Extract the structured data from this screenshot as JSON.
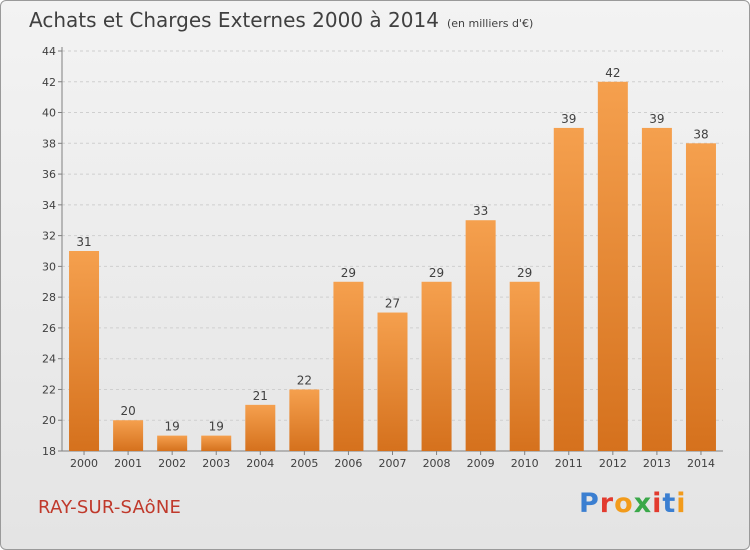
{
  "header": {
    "title": "Achats et Charges Externes 2000 à 2014",
    "subtitle": "(en milliers d'€)"
  },
  "footer": {
    "commune": "RAY-SUR-SAôNE",
    "brand": "Proxiti",
    "brand_colors": [
      "#3b7fd1",
      "#e23a2e",
      "#f29b1b",
      "#3aa849",
      "#e23a2e",
      "#3b7fd1",
      "#f29b1b"
    ]
  },
  "chart_data": {
    "type": "bar",
    "title": "Achats et Charges Externes 2000 à 2014",
    "subtitle": "(en milliers d'€)",
    "categories": [
      "2000",
      "2001",
      "2002",
      "2003",
      "2004",
      "2005",
      "2006",
      "2007",
      "2008",
      "2009",
      "2010",
      "2011",
      "2012",
      "2013",
      "2014"
    ],
    "values": [
      31,
      20,
      19,
      19,
      21,
      22,
      29,
      27,
      29,
      33,
      29,
      39,
      42,
      39,
      38
    ],
    "yticks": [
      18,
      20,
      22,
      24,
      26,
      28,
      30,
      32,
      34,
      36,
      38,
      40,
      42,
      44
    ],
    "ylim": [
      18,
      44
    ],
    "xlabel": "",
    "ylabel": "",
    "grid": true,
    "bar_color_top": "#f5a04e",
    "bar_color_bottom": "#d5711d",
    "label_color": "#404040"
  }
}
